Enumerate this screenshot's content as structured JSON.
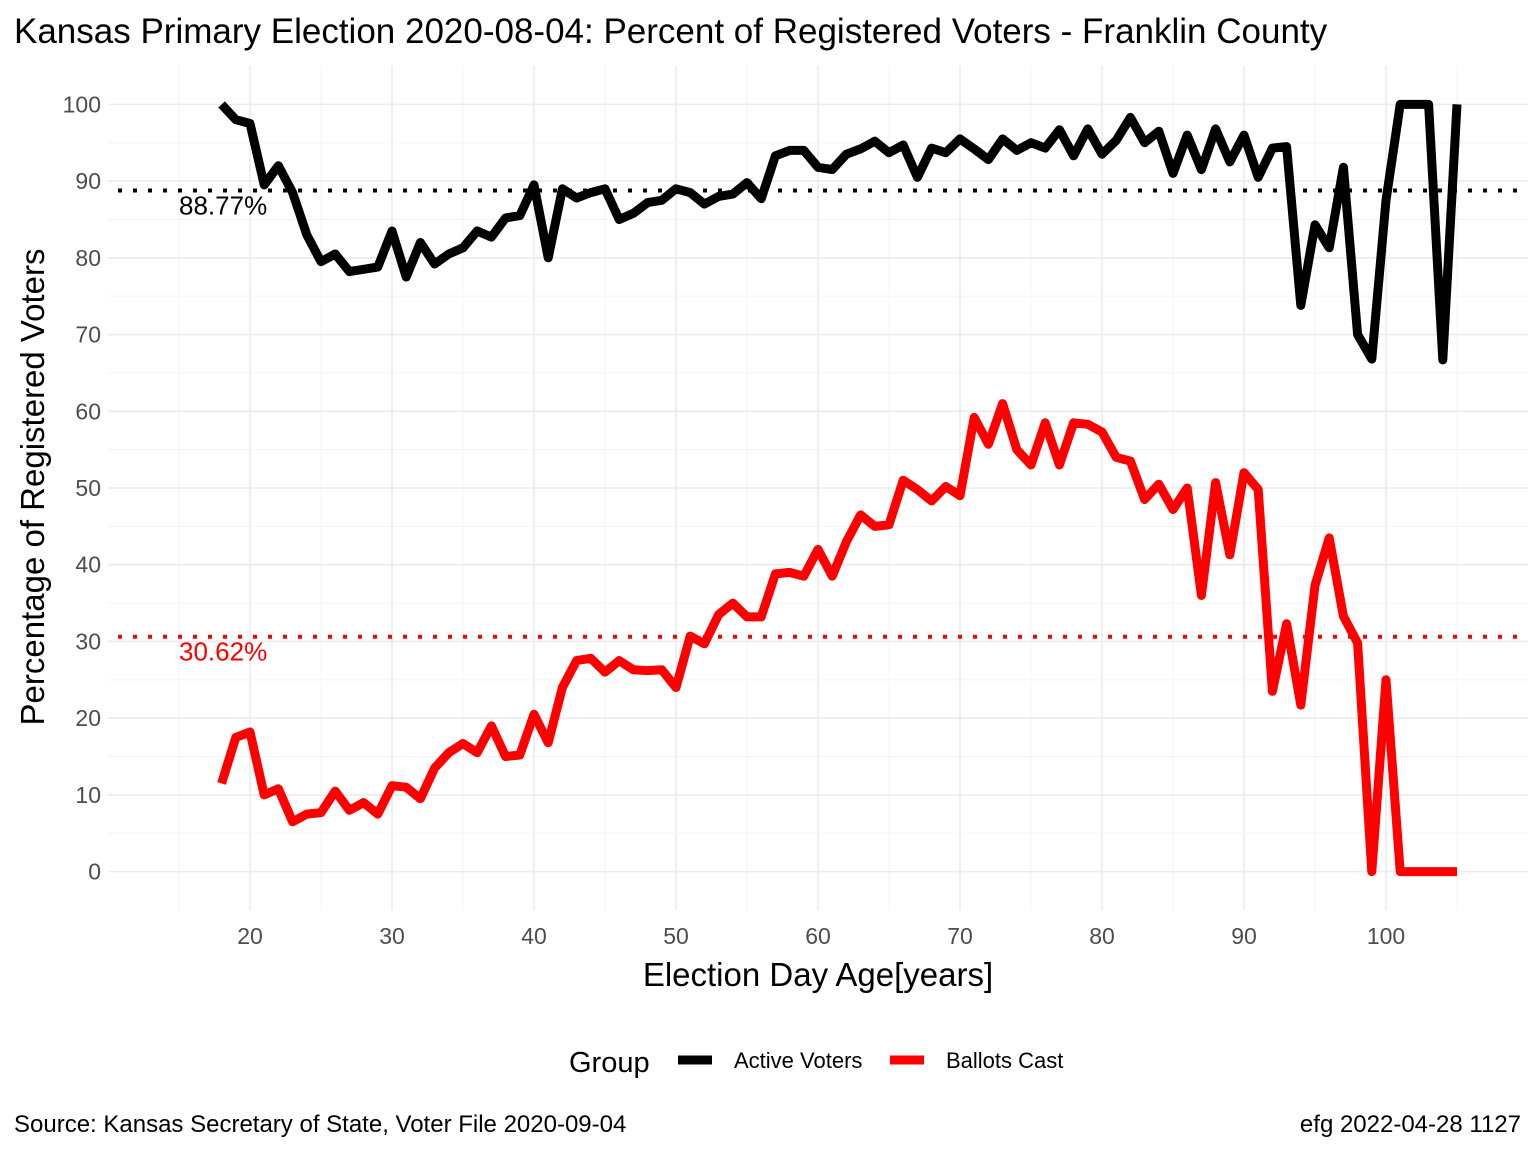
{
  "chart_data": {
    "type": "line",
    "title": "Kansas Primary Election 2020-08-04:  Percent of Registered Voters - Franklin County",
    "xlabel": "Election Day Age[years]",
    "ylabel": "Percentage of Registered Voters",
    "xlim": [
      10,
      110
    ],
    "ylim": [
      -5,
      105
    ],
    "x_ticks": [
      20,
      30,
      40,
      50,
      60,
      70,
      80,
      90,
      100
    ],
    "y_ticks": [
      0,
      10,
      20,
      30,
      40,
      50,
      60,
      70,
      80,
      90,
      100
    ],
    "grid": true,
    "legend_position": "bottom",
    "legend_title": "Group",
    "x": [
      18,
      19,
      20,
      21,
      22,
      23,
      24,
      25,
      26,
      27,
      28,
      29,
      30,
      31,
      32,
      33,
      34,
      35,
      36,
      37,
      38,
      39,
      40,
      41,
      42,
      43,
      44,
      45,
      46,
      47,
      48,
      49,
      50,
      51,
      52,
      53,
      54,
      55,
      56,
      57,
      58,
      59,
      60,
      61,
      62,
      63,
      64,
      65,
      66,
      67,
      68,
      69,
      70,
      71,
      72,
      73,
      74,
      75,
      76,
      77,
      78,
      79,
      80,
      81,
      82,
      83,
      84,
      85,
      86,
      87,
      88,
      89,
      90,
      91,
      92,
      93,
      94,
      95,
      96,
      97,
      98,
      99,
      100,
      101,
      102,
      103,
      104,
      105
    ],
    "series": [
      {
        "name": "Active Voters",
        "color": "#000000",
        "values": [
          100,
          98,
          97.5,
          89.5,
          92,
          88.5,
          83,
          79.5,
          80.5,
          78.2,
          78.5,
          78.8,
          83.5,
          77.5,
          82,
          79.2,
          80.5,
          81.3,
          83.5,
          82.7,
          85.2,
          85.5,
          89.5,
          80,
          89,
          87.8,
          88.5,
          89,
          85,
          85.8,
          87.2,
          87.5,
          89,
          88.5,
          87,
          88,
          88.3,
          89.8,
          87.7,
          93.3,
          94,
          94,
          91.8,
          91.5,
          93.5,
          94.2,
          95.2,
          93.7,
          94.7,
          90.5,
          94.3,
          93.7,
          95.5,
          94.2,
          92.8,
          95.5,
          94,
          95,
          94.3,
          96.7,
          93.3,
          96.8,
          93.5,
          95.3,
          98.3,
          95,
          96.5,
          91,
          96,
          91.5,
          96.8,
          92.5,
          96,
          90.5,
          94.3,
          94.5,
          73.8,
          84.3,
          81.3,
          91.8,
          70,
          66.8,
          87.5,
          100,
          100,
          100,
          66.7,
          100
        ]
      },
      {
        "name": "Ballots Cast",
        "color": "#ff0000",
        "values": [
          11.5,
          17.5,
          18.2,
          10,
          10.8,
          6.5,
          7.5,
          7.7,
          10.5,
          8,
          9,
          7.5,
          11.2,
          11,
          9.5,
          13.5,
          15.5,
          16.7,
          15.5,
          19,
          15,
          15.2,
          20.5,
          16.8,
          24,
          27.5,
          27.8,
          26,
          27.5,
          26.3,
          26.2,
          26.3,
          24,
          30.7,
          29.7,
          33.5,
          35,
          33.2,
          33.2,
          38.8,
          39,
          38.5,
          42,
          38.5,
          43,
          46.5,
          45,
          45.2,
          51,
          49.8,
          48.3,
          50.2,
          49,
          59.2,
          55.7,
          61,
          55,
          53,
          58.5,
          53,
          58.5,
          58.3,
          57.3,
          54,
          53.5,
          48.5,
          50.5,
          47.2,
          50,
          36,
          50.7,
          41.3,
          52,
          49.8,
          23.5,
          32.3,
          21.7,
          37.3,
          43.5,
          33.3,
          29.8,
          0,
          25,
          0,
          0,
          0,
          0,
          0
        ]
      }
    ],
    "reference_lines": [
      {
        "series": "Active Voters",
        "y": 88.77,
        "label": "88.77%",
        "color": "#000000"
      },
      {
        "series": "Ballots Cast",
        "y": 30.62,
        "label": "30.62%",
        "color": "#ff0000"
      }
    ]
  },
  "caption_left": "Source:  Kansas Secretary of State, Voter File  2020-09-04",
  "caption_right": "efg 2022-04-28 1127"
}
